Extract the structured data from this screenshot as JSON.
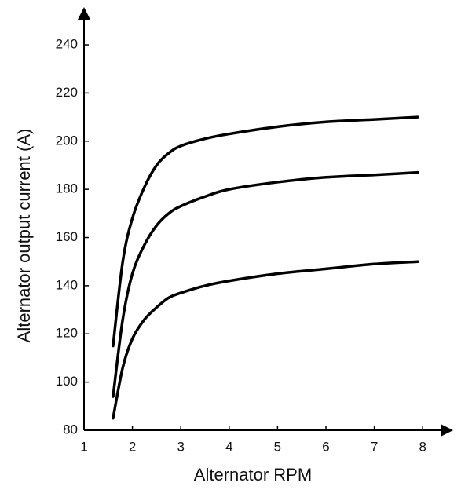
{
  "chart_data": {
    "type": "line",
    "x_label": "Alternator RPM",
    "y_label": "Alternator output current (A)",
    "x": [
      1.6,
      1.8,
      2,
      2.25,
      2.5,
      2.75,
      3,
      3.5,
      4,
      5,
      6,
      7,
      7.9
    ],
    "series": [
      {
        "color": "#000000",
        "values": [
          115,
          150,
          168,
          181,
          190,
          195,
          198,
          201,
          203,
          206,
          208,
          209,
          210
        ]
      },
      {
        "color": "#000000",
        "values": [
          94,
          126,
          145,
          157,
          165,
          170,
          173,
          177,
          180,
          183,
          185,
          186,
          187
        ]
      },
      {
        "color": "#000000",
        "values": [
          85,
          106,
          118,
          126,
          131,
          135,
          137,
          140,
          142,
          145,
          147,
          149,
          150
        ]
      }
    ],
    "xlim": [
      1,
      8.5
    ],
    "xticks": [
      1,
      2,
      3,
      4,
      5,
      6,
      7,
      8
    ],
    "ylim": [
      80,
      255
    ],
    "yticks": [
      80,
      100,
      120,
      140,
      160,
      180,
      200,
      220,
      240
    ],
    "grid": false
  }
}
